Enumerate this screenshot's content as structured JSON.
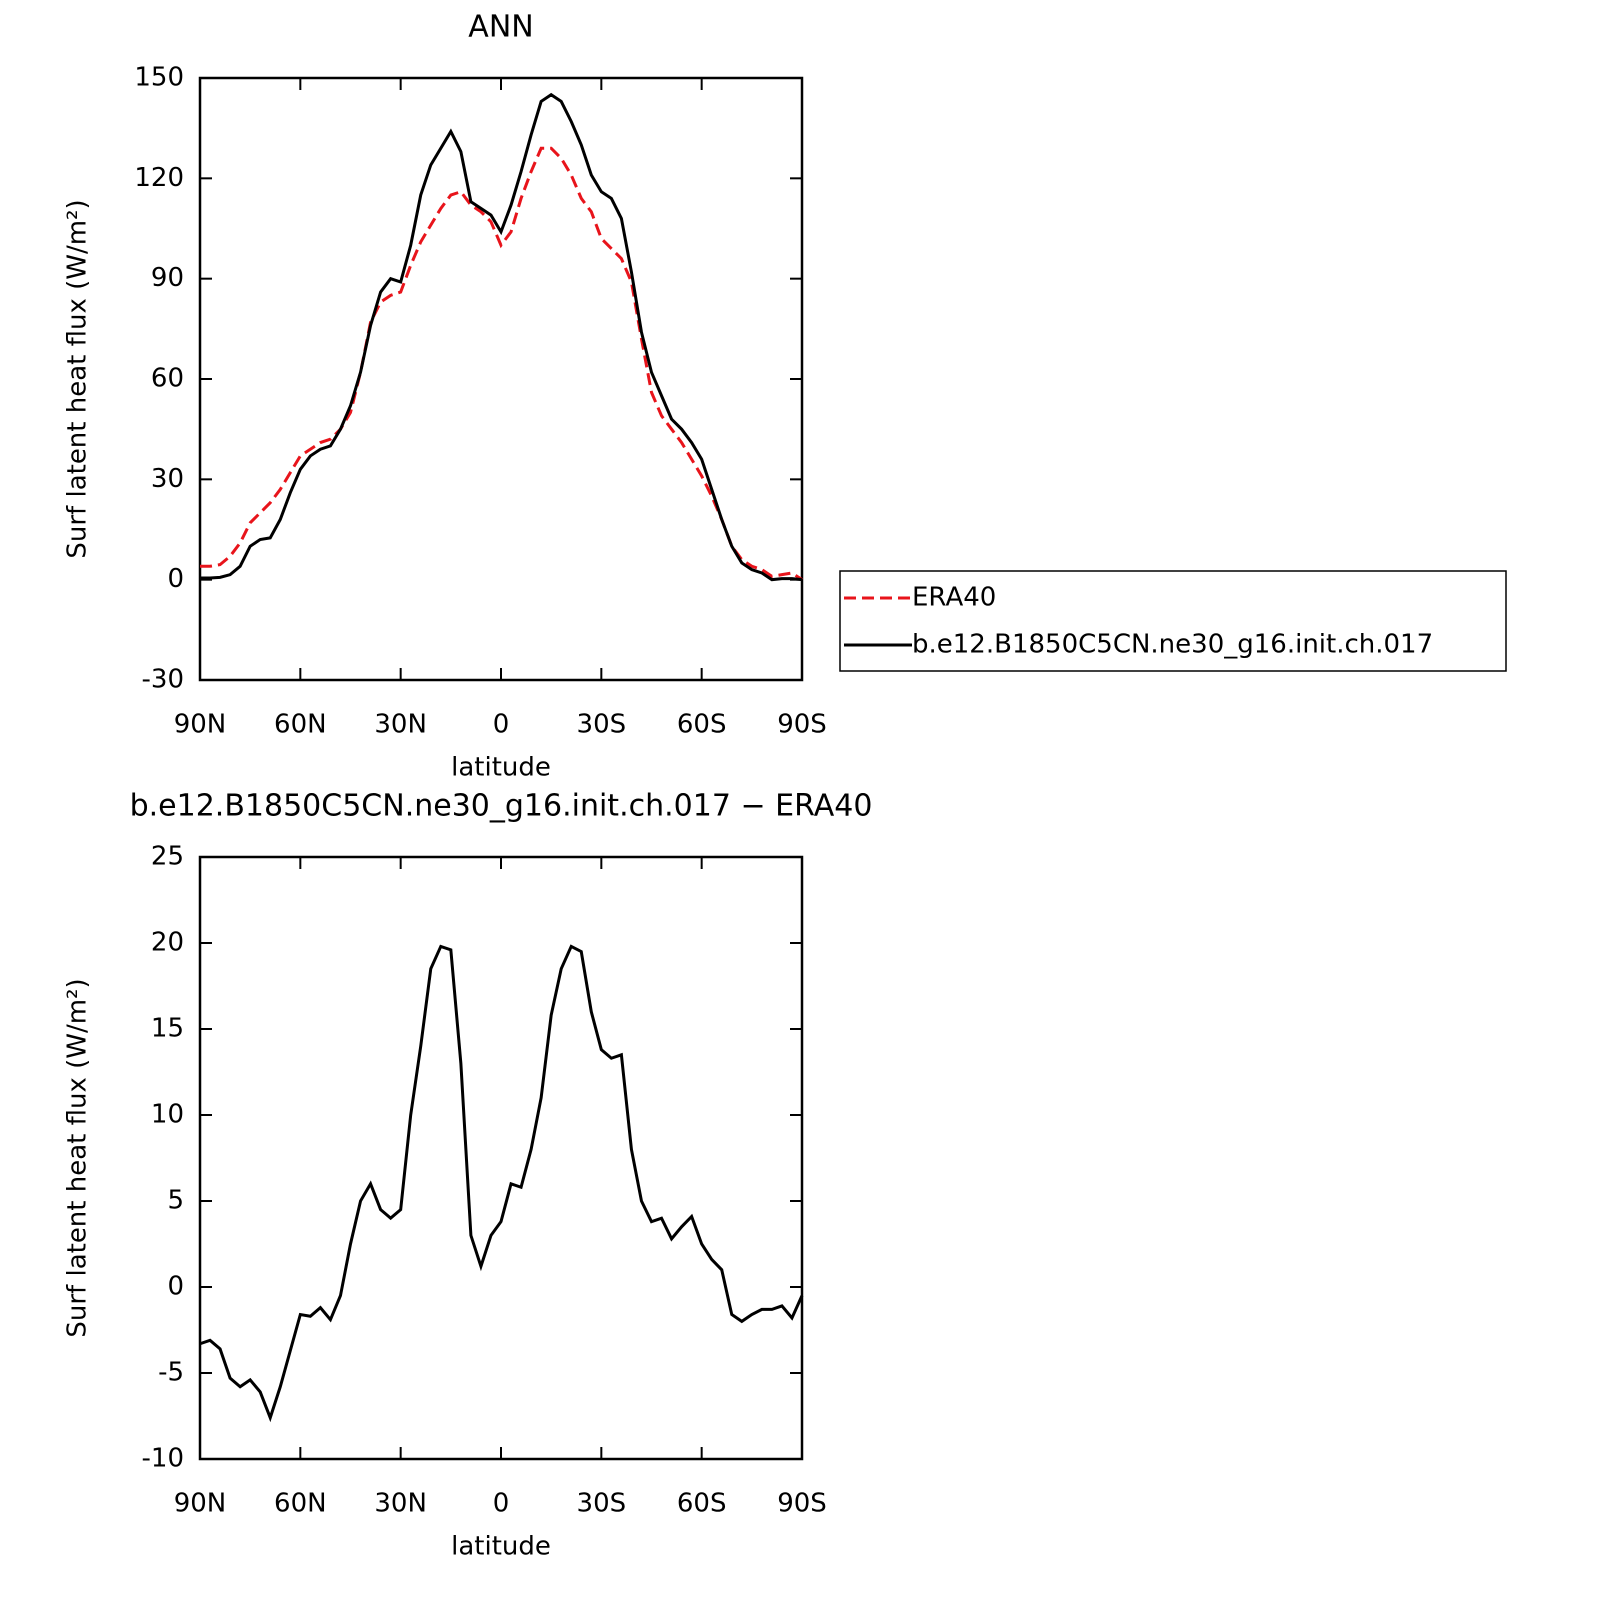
{
  "chart_data": [
    {
      "type": "line",
      "title": "ANN",
      "xlabel": "latitude",
      "ylabel": "Surf latent heat flux (W/m²)",
      "x": [
        90,
        87,
        84,
        81,
        78,
        75,
        72,
        69,
        66,
        63,
        60,
        57,
        54,
        51,
        48,
        45,
        42,
        39,
        36,
        33,
        30,
        27,
        24,
        21,
        18,
        15,
        12,
        9,
        6,
        3,
        0,
        -3,
        -6,
        -9,
        -12,
        -15,
        -18,
        -21,
        -24,
        -27,
        -30,
        -33,
        -36,
        -39,
        -42,
        -45,
        -48,
        -51,
        -54,
        -57,
        -60,
        -63,
        -66,
        -69,
        -72,
        -75,
        -78,
        -81,
        -84,
        -87,
        -90
      ],
      "series": [
        {
          "name": "ERA40",
          "color": "#e8141b",
          "style": "dashed",
          "values": [
            4,
            4,
            4.5,
            7,
            11,
            17,
            20,
            23,
            27,
            32,
            37,
            39,
            41,
            42,
            45,
            50,
            62,
            77,
            83,
            85,
            86,
            94,
            101,
            106,
            111,
            115,
            116,
            112,
            110,
            107,
            100,
            104,
            114,
            122,
            129,
            129,
            126,
            121,
            114,
            110,
            102,
            99,
            96,
            89,
            72,
            56,
            49,
            45,
            41,
            36,
            31,
            25,
            18,
            10,
            6,
            4,
            3,
            1,
            1.5,
            2,
            0
          ]
        },
        {
          "name": "b.e12.B1850C5CN.ne30_g16.init.ch.017",
          "color": "#000000",
          "style": "solid",
          "values": [
            0.5,
            0.5,
            0.7,
            1.5,
            4,
            10,
            12,
            12.5,
            18,
            26,
            33,
            37,
            39,
            40,
            45,
            52,
            62,
            76,
            86,
            90,
            89,
            100,
            115,
            124,
            129,
            134,
            128,
            113,
            111,
            109,
            104,
            112,
            122,
            133,
            143,
            145,
            143,
            137,
            130,
            121,
            116,
            114,
            108,
            92,
            74,
            62,
            55,
            48,
            45,
            41,
            36,
            27,
            18,
            10,
            5,
            3,
            2,
            0,
            0.3,
            0.3,
            0
          ]
        }
      ],
      "xlim": [
        90,
        -90
      ],
      "xticks": [
        {
          "value": 90,
          "label": "90N"
        },
        {
          "value": 60,
          "label": "60N"
        },
        {
          "value": 30,
          "label": "30N"
        },
        0,
        {
          "value": -30,
          "label": "30S"
        },
        {
          "value": -60,
          "label": "60S"
        },
        {
          "value": -90,
          "label": "90S"
        }
      ],
      "ylim": [
        -30,
        150
      ],
      "yticks": [
        -30,
        0,
        30,
        60,
        90,
        120,
        150
      ],
      "legend": "right"
    },
    {
      "type": "line",
      "title": "b.e12.B1850C5CN.ne30_g16.init.ch.017 − ERA40",
      "xlabel": "latitude",
      "ylabel": "Surf latent heat flux (W/m²)",
      "x": [
        90,
        87,
        84,
        81,
        78,
        75,
        72,
        69,
        66,
        63,
        60,
        57,
        54,
        51,
        48,
        45,
        42,
        39,
        36,
        33,
        30,
        27,
        24,
        21,
        18,
        15,
        12,
        9,
        6,
        3,
        0,
        -3,
        -6,
        -9,
        -12,
        -15,
        -18,
        -21,
        -24,
        -27,
        -30,
        -33,
        -36,
        -39,
        -42,
        -45,
        -48,
        -51,
        -54,
        -57,
        -60,
        -63,
        -66,
        -69,
        -72,
        -75,
        -78,
        -81,
        -84,
        -87,
        -90
      ],
      "series": [
        {
          "color": "#000000",
          "style": "solid",
          "values": [
            -3.3,
            -3.1,
            -3.6,
            -5.3,
            -5.8,
            -5.4,
            -6.1,
            -7.6,
            -5.8,
            -3.7,
            -1.6,
            -1.7,
            -1.2,
            -1.9,
            -0.5,
            2.5,
            5,
            6,
            4.5,
            4,
            4.5,
            10,
            14,
            18.5,
            19.8,
            19.6,
            13,
            3,
            1.2,
            3,
            3.8,
            6,
            5.8,
            8,
            11,
            15.8,
            18.5,
            19.8,
            19.5,
            16,
            13.8,
            13.3,
            13.5,
            8,
            5,
            3.8,
            4,
            2.8,
            3.5,
            4.1,
            2.5,
            1.6,
            1,
            -1.6,
            -2,
            -1.6,
            -1.3,
            -1.3,
            -1.1,
            -1.8,
            -0.5
          ]
        }
      ],
      "xlim": [
        90,
        -90
      ],
      "xticks": [
        {
          "value": 90,
          "label": "90N"
        },
        {
          "value": 60,
          "label": "60N"
        },
        {
          "value": 30,
          "label": "30N"
        },
        0,
        {
          "value": -30,
          "label": "30S"
        },
        {
          "value": -60,
          "label": "60S"
        },
        {
          "value": -90,
          "label": "90S"
        }
      ],
      "ylim": [
        -10,
        25
      ],
      "yticks": [
        -10,
        -5,
        0,
        5,
        10,
        15,
        20,
        25
      ]
    }
  ]
}
